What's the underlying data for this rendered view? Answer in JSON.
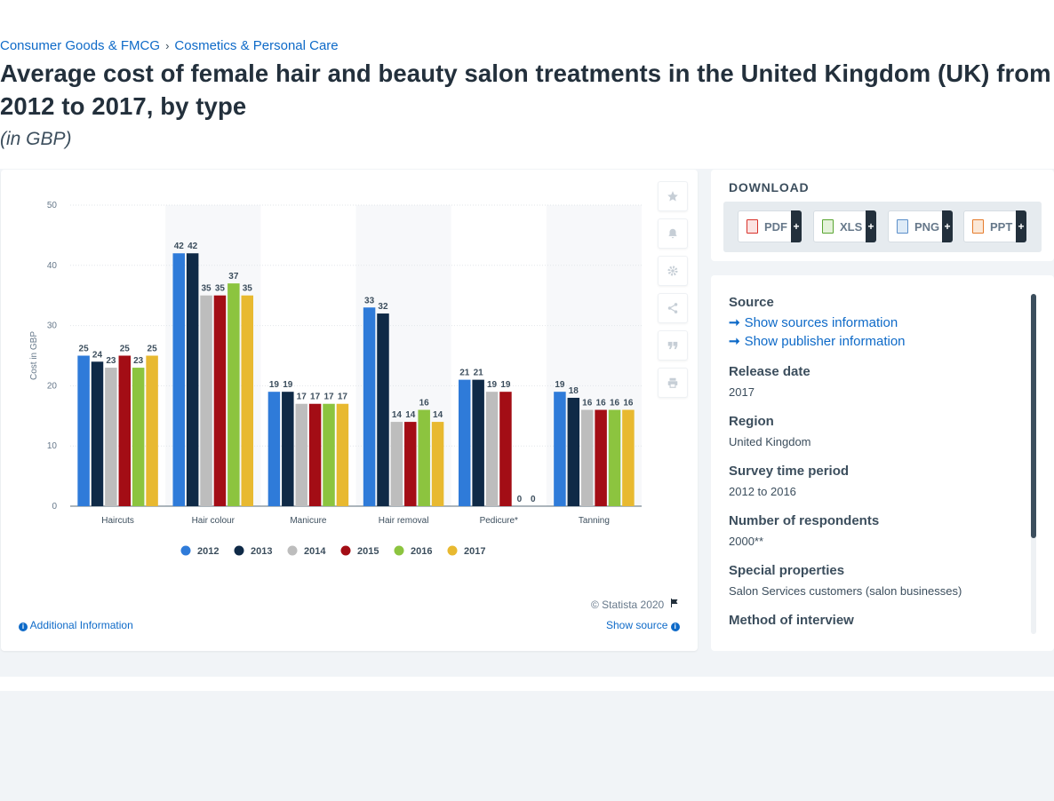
{
  "breadcrumb": {
    "item1": "Consumer Goods & FMCG",
    "separator": "›",
    "item2": "Cosmetics & Personal Care"
  },
  "title": "Average cost of female hair and beauty salon treatments in the United Kingdom (UK) from 2012 to 2017, by type",
  "unit": "(in GBP)",
  "chart_data": {
    "type": "bar",
    "ylabel": "Cost in GBP",
    "xlabel": "",
    "ylim": [
      0,
      50
    ],
    "yticks": [
      0,
      10,
      20,
      30,
      40,
      50
    ],
    "grid": true,
    "legend_position": "bottom-center",
    "categories": [
      "Haircuts",
      "Hair colour",
      "Manicure",
      "Hair removal",
      "Pedicure*",
      "Tanning"
    ],
    "series": [
      {
        "name": "2012",
        "color": "#2f7bd9",
        "values": [
          25,
          42,
          19,
          33,
          21,
          19
        ]
      },
      {
        "name": "2013",
        "color": "#0f2a47",
        "values": [
          24,
          42,
          19,
          32,
          21,
          18
        ]
      },
      {
        "name": "2014",
        "color": "#bdbdbd",
        "values": [
          23,
          35,
          17,
          14,
          19,
          16
        ]
      },
      {
        "name": "2015",
        "color": "#a30d15",
        "values": [
          25,
          35,
          17,
          14,
          19,
          16
        ]
      },
      {
        "name": "2016",
        "color": "#8cc43f",
        "values": [
          23,
          37,
          17,
          16,
          0,
          16
        ]
      },
      {
        "name": "2017",
        "color": "#e8b930",
        "values": [
          25,
          35,
          17,
          14,
          0,
          16
        ]
      }
    ]
  },
  "side_icons": [
    "star-icon",
    "bell-icon",
    "gear-icon",
    "share-icon",
    "quote-icon",
    "print-icon"
  ],
  "copyright": "© Statista 2020",
  "additional_info": "Additional Information",
  "show_source": "Show source",
  "download": {
    "title": "DOWNLOAD",
    "buttons": [
      {
        "label": "PDF",
        "plus": "+",
        "color": "#d8322b"
      },
      {
        "label": "XLS",
        "plus": "+",
        "color": "#5aa632"
      },
      {
        "label": "PNG",
        "plus": "+",
        "color": "#5b8fc9"
      },
      {
        "label": "PPT",
        "plus": "+",
        "color": "#e57b2b"
      }
    ]
  },
  "source": {
    "heading": "Source",
    "show_sources": "Show sources information",
    "show_publisher": "Show publisher information",
    "release_date_label": "Release date",
    "release_date": "2017",
    "region_label": "Region",
    "region": "United Kingdom",
    "survey_period_label": "Survey time period",
    "survey_period": "2012 to 2016",
    "respondents_label": "Number of respondents",
    "respondents": "2000**",
    "special_label": "Special properties",
    "special": "Salon Services customers (salon businesses)",
    "method_label": "Method of interview"
  }
}
